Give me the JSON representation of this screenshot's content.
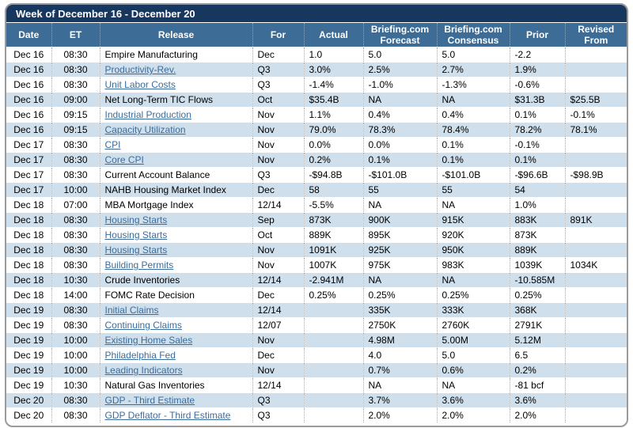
{
  "title": "Week of December 16 - December 20",
  "columns": [
    "Date",
    "ET",
    "Release",
    "For",
    "Actual",
    "Briefing.com Forecast",
    "Briefing.com Consensus",
    "Prior",
    "Revised From"
  ],
  "colors": {
    "title_bar_background": "#17375e",
    "header_background": "#3d6d96",
    "alternate_row_background": "#cfdfeb",
    "link_text": "#3a6d9e",
    "outer_border": "#9a9a9a",
    "header_text": "#ffffff",
    "body_text": "#000000"
  },
  "rows": [
    {
      "date": "Dec 16",
      "et": "08:30",
      "release": "Empire Manufacturing",
      "link": false,
      "for": "Dec",
      "actual": "1.0",
      "forecast": "5.0",
      "consensus": "5.0",
      "prior": "-2.2",
      "revised": ""
    },
    {
      "date": "Dec 16",
      "et": "08:30",
      "release": "Productivity-Rev.",
      "link": true,
      "for": "Q3",
      "actual": "3.0%",
      "forecast": "2.5%",
      "consensus": "2.7%",
      "prior": "1.9%",
      "revised": ""
    },
    {
      "date": "Dec 16",
      "et": "08:30",
      "release": "Unit Labor Costs",
      "link": true,
      "for": "Q3",
      "actual": "-1.4%",
      "forecast": "-1.0%",
      "consensus": "-1.3%",
      "prior": "-0.6%",
      "revised": ""
    },
    {
      "date": "Dec 16",
      "et": "09:00",
      "release": "Net Long-Term TIC Flows",
      "link": false,
      "for": "Oct",
      "actual": "$35.4B",
      "forecast": "NA",
      "consensus": "NA",
      "prior": "$31.3B",
      "revised": "$25.5B"
    },
    {
      "date": "Dec 16",
      "et": "09:15",
      "release": "Industrial Production",
      "link": true,
      "for": "Nov",
      "actual": "1.1%",
      "forecast": "0.4%",
      "consensus": "0.4%",
      "prior": "0.1%",
      "revised": "-0.1%"
    },
    {
      "date": "Dec 16",
      "et": "09:15",
      "release": "Capacity Utilization",
      "link": true,
      "for": "Nov",
      "actual": "79.0%",
      "forecast": "78.3%",
      "consensus": "78.4%",
      "prior": "78.2%",
      "revised": "78.1%"
    },
    {
      "date": "Dec 17",
      "et": "08:30",
      "release": "CPI",
      "link": true,
      "for": "Nov",
      "actual": "0.0%",
      "forecast": "0.0%",
      "consensus": "0.1%",
      "prior": "-0.1%",
      "revised": ""
    },
    {
      "date": "Dec 17",
      "et": "08:30",
      "release": "Core CPI",
      "link": true,
      "for": "Nov",
      "actual": "0.2%",
      "forecast": "0.1%",
      "consensus": "0.1%",
      "prior": "0.1%",
      "revised": ""
    },
    {
      "date": "Dec 17",
      "et": "08:30",
      "release": "Current Account Balance",
      "link": false,
      "for": "Q3",
      "actual": "-$94.8B",
      "forecast": "-$101.0B",
      "consensus": "-$101.0B",
      "prior": "-$96.6B",
      "revised": "-$98.9B"
    },
    {
      "date": "Dec 17",
      "et": "10:00",
      "release": "NAHB Housing Market Index",
      "link": false,
      "for": "Dec",
      "actual": "58",
      "forecast": "55",
      "consensus": "55",
      "prior": "54",
      "revised": ""
    },
    {
      "date": "Dec 18",
      "et": "07:00",
      "release": "MBA Mortgage Index",
      "link": false,
      "for": "12/14",
      "actual": "-5.5%",
      "forecast": "NA",
      "consensus": "NA",
      "prior": "1.0%",
      "revised": ""
    },
    {
      "date": "Dec 18",
      "et": "08:30",
      "release": "Housing Starts",
      "link": true,
      "for": "Sep",
      "actual": "873K",
      "forecast": "900K",
      "consensus": "915K",
      "prior": "883K",
      "revised": "891K"
    },
    {
      "date": "Dec 18",
      "et": "08:30",
      "release": "Housing Starts",
      "link": true,
      "for": "Oct",
      "actual": "889K",
      "forecast": "895K",
      "consensus": "920K",
      "prior": "873K",
      "revised": ""
    },
    {
      "date": "Dec 18",
      "et": "08:30",
      "release": "Housing Starts",
      "link": true,
      "for": "Nov",
      "actual": "1091K",
      "forecast": "925K",
      "consensus": "950K",
      "prior": "889K",
      "revised": ""
    },
    {
      "date": "Dec 18",
      "et": "08:30",
      "release": "Building Permits",
      "link": true,
      "for": "Nov",
      "actual": "1007K",
      "forecast": "975K",
      "consensus": "983K",
      "prior": "1039K",
      "revised": "1034K"
    },
    {
      "date": "Dec 18",
      "et": "10:30",
      "release": "Crude Inventories",
      "link": false,
      "for": "12/14",
      "actual": "-2.941M",
      "forecast": "NA",
      "consensus": "NA",
      "prior": "-10.585M",
      "revised": ""
    },
    {
      "date": "Dec 18",
      "et": "14:00",
      "release": "FOMC Rate Decision",
      "link": false,
      "for": "Dec",
      "actual": "0.25%",
      "forecast": "0.25%",
      "consensus": "0.25%",
      "prior": "0.25%",
      "revised": ""
    },
    {
      "date": "Dec 19",
      "et": "08:30",
      "release": "Initial Claims",
      "link": true,
      "for": "12/14",
      "actual": "",
      "forecast": "335K",
      "consensus": "333K",
      "prior": "368K",
      "revised": ""
    },
    {
      "date": "Dec 19",
      "et": "08:30",
      "release": "Continuing Claims",
      "link": true,
      "for": "12/07",
      "actual": "",
      "forecast": "2750K",
      "consensus": "2760K",
      "prior": "2791K",
      "revised": ""
    },
    {
      "date": "Dec 19",
      "et": "10:00",
      "release": "Existing Home Sales",
      "link": true,
      "for": "Nov",
      "actual": "",
      "forecast": "4.98M",
      "consensus": "5.00M",
      "prior": "5.12M",
      "revised": ""
    },
    {
      "date": "Dec 19",
      "et": "10:00",
      "release": "Philadelphia Fed",
      "link": true,
      "for": "Dec",
      "actual": "",
      "forecast": "4.0",
      "consensus": "5.0",
      "prior": "6.5",
      "revised": ""
    },
    {
      "date": "Dec 19",
      "et": "10:00",
      "release": "Leading Indicators",
      "link": true,
      "for": "Nov",
      "actual": "",
      "forecast": "0.7%",
      "consensus": "0.6%",
      "prior": "0.2%",
      "revised": ""
    },
    {
      "date": "Dec 19",
      "et": "10:30",
      "release": "Natural Gas Inventories",
      "link": false,
      "for": "12/14",
      "actual": "",
      "forecast": "NA",
      "consensus": "NA",
      "prior": "-81 bcf",
      "revised": ""
    },
    {
      "date": "Dec 20",
      "et": "08:30",
      "release": "GDP - Third Estimate",
      "link": true,
      "for": "Q3",
      "actual": "",
      "forecast": "3.7%",
      "consensus": "3.6%",
      "prior": "3.6%",
      "revised": ""
    },
    {
      "date": "Dec 20",
      "et": "08:30",
      "release": "GDP Deflator - Third Estimate",
      "link": true,
      "for": "Q3",
      "actual": "",
      "forecast": "2.0%",
      "consensus": "2.0%",
      "prior": "2.0%",
      "revised": ""
    }
  ]
}
